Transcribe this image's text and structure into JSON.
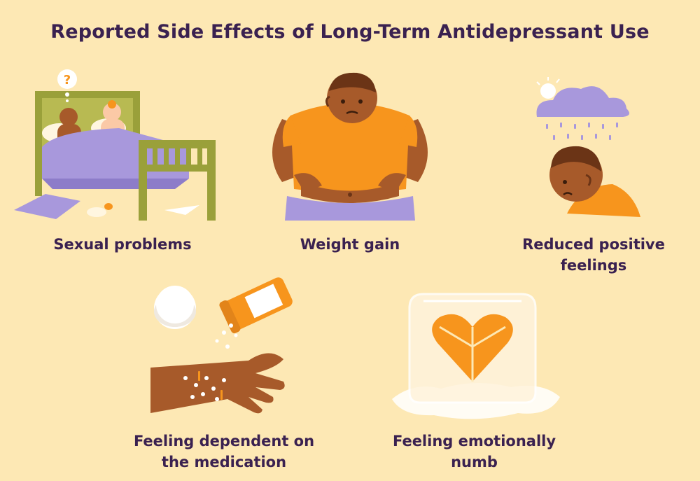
{
  "title": "Reported Side Effects of Long-Term Antidepressant Use",
  "effects": [
    {
      "label": "Sexual problems",
      "icon": "bed-couple-icon"
    },
    {
      "label": "Weight gain",
      "icon": "overweight-person-icon"
    },
    {
      "label": "Reduced positive feelings",
      "icon": "rain-cloud-sad-person-icon"
    },
    {
      "label": "Feeling dependent on the medication",
      "icon": "pills-hand-icon"
    },
    {
      "label": "Feeling emotionally numb",
      "icon": "frozen-heart-icon"
    }
  ],
  "bubble_text": "?",
  "colors": {
    "background": "#fde8b4",
    "text": "#3a2150",
    "orange": "#f7951d",
    "skin": "#a75a2a",
    "purple": "#a898dc",
    "olive": "#9aa03a"
  }
}
